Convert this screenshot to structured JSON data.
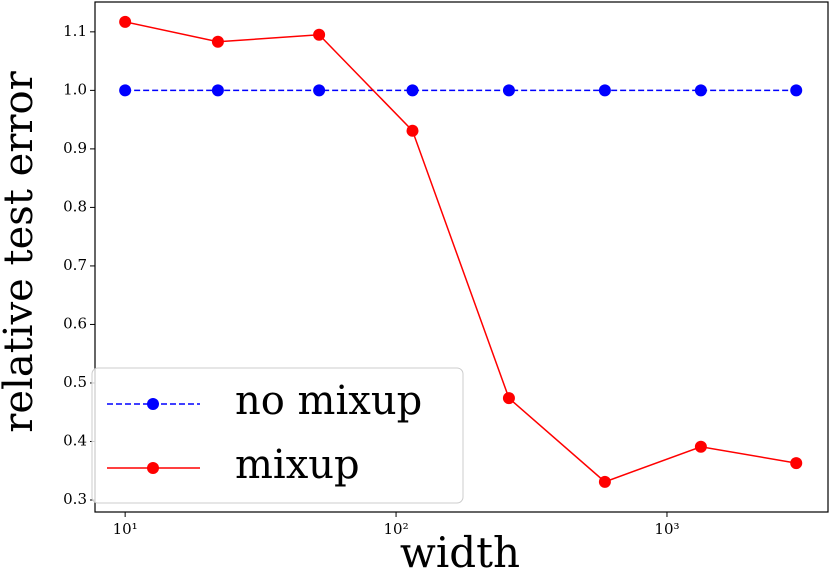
{
  "chart_data": {
    "type": "line",
    "xlabel": "width",
    "ylabel": "relative test error",
    "x": [
      10,
      22,
      52,
      115,
      261,
      590,
      1334,
      3000
    ],
    "series": [
      {
        "name": "no mixup",
        "color": "#0000ff",
        "dashed": true,
        "values": [
          1.0,
          1.0,
          1.0,
          1.0,
          1.0,
          1.0,
          1.0,
          1.0
        ]
      },
      {
        "name": "mixup",
        "color": "#ff0000",
        "dashed": false,
        "values": [
          1.117,
          1.083,
          1.095,
          0.931,
          0.474,
          0.331,
          0.391,
          0.363
        ]
      }
    ],
    "xscale": "log",
    "xlim": [
      7.74,
      3930
    ],
    "xticks": [
      {
        "value": 10,
        "label": "10¹"
      },
      {
        "value": 100,
        "label": "10²"
      },
      {
        "value": 1000,
        "label": "10³"
      }
    ],
    "ylim": [
      0.2795,
      1.151
    ],
    "yticks": [
      0.3,
      0.4,
      0.5,
      0.6,
      0.7,
      0.8,
      0.9,
      {
        "value": 1,
        "label": "1.0"
      },
      1.1
    ],
    "grid": false,
    "legend": "lower left"
  }
}
